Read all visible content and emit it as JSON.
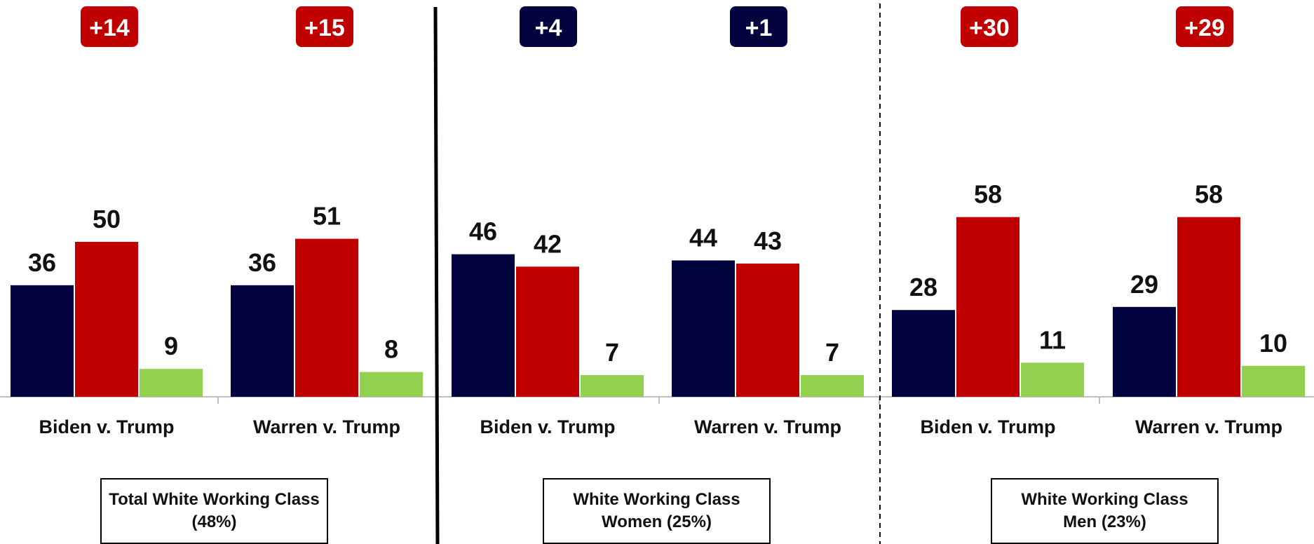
{
  "chart_data": {
    "type": "bar",
    "colors": {
      "biden_warren": "#02023f",
      "trump": "#c00000",
      "other": "#92d050",
      "margin_trump": "#c00000",
      "margin_dem": "#02023f"
    },
    "ylim": [
      0,
      100
    ],
    "grid": false,
    "legend": "none",
    "segments": [
      {
        "label_line1": "Total White Working Class",
        "label_line2": "(48%)",
        "groups": [
          {
            "category": "Biden v. Trump",
            "margin": "+14",
            "margin_party": "trump",
            "values": [
              36,
              50,
              9
            ]
          },
          {
            "category": "Warren v. Trump",
            "margin": "+15",
            "margin_party": "trump",
            "values": [
              36,
              51,
              8
            ]
          }
        ]
      },
      {
        "label_line1": "White Working Class",
        "label_line2": "Women (25%)",
        "groups": [
          {
            "category": "Biden v. Trump",
            "margin": "+4",
            "margin_party": "dem",
            "values": [
              46,
              42,
              7
            ]
          },
          {
            "category": "Warren v. Trump",
            "margin": "+1",
            "margin_party": "dem",
            "values": [
              44,
              43,
              7
            ]
          }
        ]
      },
      {
        "label_line1": "White Working Class",
        "label_line2": "Men (23%)",
        "groups": [
          {
            "category": "Biden v. Trump",
            "margin": "+30",
            "margin_party": "trump",
            "values": [
              28,
              58,
              11
            ]
          },
          {
            "category": "Warren v. Trump",
            "margin": "+29",
            "margin_party": "trump",
            "values": [
              29,
              58,
              10
            ]
          }
        ]
      }
    ]
  }
}
